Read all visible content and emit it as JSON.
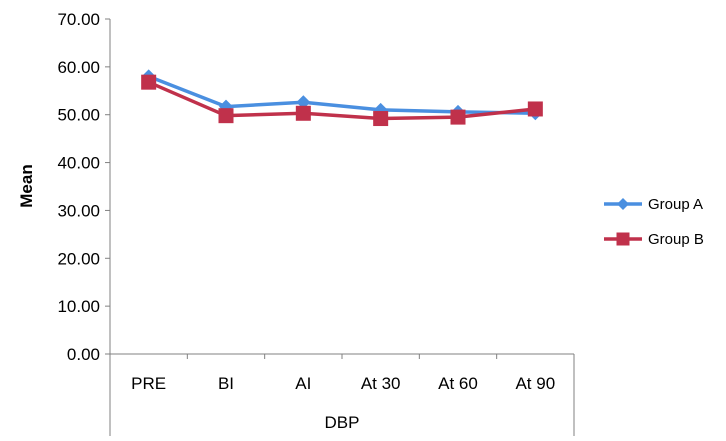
{
  "chart_data": {
    "type": "line",
    "categories": [
      "PRE",
      "BI",
      "AI",
      "At 30",
      "At 60",
      "At 90"
    ],
    "series": [
      {
        "name": "Group A",
        "values": [
          58.0,
          51.7,
          52.6,
          51.0,
          50.6,
          50.3
        ],
        "color": "#4a8fe0",
        "marker": "diamond"
      },
      {
        "name": "Group B",
        "values": [
          56.8,
          49.8,
          50.3,
          49.2,
          49.5,
          51.2
        ],
        "color": "#c0314b",
        "marker": "square"
      }
    ],
    "xlabel": "DBP",
    "ylabel": "Mean",
    "ylim": [
      0,
      70
    ],
    "yticks": [
      "0.00",
      "10.00",
      "20.00",
      "30.00",
      "40.00",
      "50.00",
      "60.00",
      "70.00"
    ],
    "grid": false,
    "legend": "right"
  }
}
